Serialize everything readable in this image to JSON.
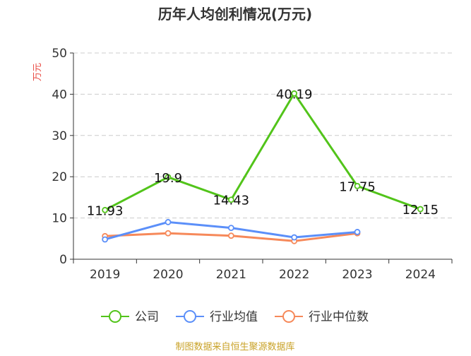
{
  "chart_data": {
    "type": "line",
    "title": "历年人均创利情况(万元)",
    "ylabel": "万元",
    "xlabel": "",
    "ylim": [
      0,
      50
    ],
    "yticks": [
      0,
      10,
      20,
      30,
      40,
      50
    ],
    "grid": true,
    "categories": [
      "2019",
      "2020",
      "2021",
      "2022",
      "2023",
      "2024"
    ],
    "series": [
      {
        "name": "公司",
        "color": "#52c41a",
        "values": [
          11.93,
          19.9,
          14.43,
          40.19,
          17.75,
          12.15
        ],
        "labels": [
          "11.93",
          "19.9",
          "14.43",
          "40.19",
          "17.75",
          "12.15"
        ]
      },
      {
        "name": "行业均值",
        "color": "#5b8ff9",
        "values": [
          4.8,
          9.0,
          7.6,
          5.3,
          6.6,
          null
        ]
      },
      {
        "name": "行业中位数",
        "color": "#f6895a",
        "values": [
          5.6,
          6.3,
          5.7,
          4.4,
          6.3,
          null
        ]
      }
    ],
    "legend_position": "bottom",
    "source": "制图数据来自恒生聚源数据库"
  },
  "colors": {
    "axis": "#333333",
    "grid": "#cccccc",
    "ylabel": "#e8473f",
    "source": "#c9a227",
    "title": "#333333"
  }
}
